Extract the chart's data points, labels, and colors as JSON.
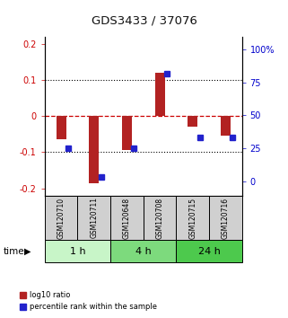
{
  "title": "GDS3433 / 37076",
  "samples": [
    "GSM120710",
    "GSM120711",
    "GSM120648",
    "GSM120708",
    "GSM120715",
    "GSM120716"
  ],
  "log10_ratio": [
    -0.065,
    -0.185,
    -0.095,
    0.12,
    -0.03,
    -0.055
  ],
  "percentile_rank": [
    25,
    3,
    25,
    82,
    33,
    33
  ],
  "time_groups": [
    {
      "label": "1 h",
      "spans": [
        0,
        2
      ],
      "color": "#c8f5c8"
    },
    {
      "label": "4 h",
      "spans": [
        2,
        4
      ],
      "color": "#7dda7d"
    },
    {
      "label": "24 h",
      "spans": [
        4,
        6
      ],
      "color": "#4dc94d"
    }
  ],
  "ylim_left": [
    -0.22,
    0.22
  ],
  "ylim_right": [
    -11,
    110
  ],
  "bar_color_red": "#b22222",
  "bar_color_blue": "#2222cc",
  "bg_color": "#ffffff",
  "plot_bg": "#ffffff",
  "grid_color": "#000000",
  "zero_line_color": "#cc0000",
  "tick_color_left": "#cc0000",
  "tick_color_right": "#0000cc",
  "right_yticks": [
    0,
    25,
    50,
    75,
    100
  ],
  "right_yticklabels": [
    "0",
    "25",
    "50",
    "75",
    "100%"
  ],
  "left_yticks": [
    -0.2,
    -0.1,
    0.0,
    0.1,
    0.2
  ],
  "left_yticklabels": [
    "-0.2",
    "-0.1",
    "0",
    "0.1",
    "0.2"
  ],
  "sample_box_color": "#d0d0d0",
  "legend_red_label": "log10 ratio",
  "legend_blue_label": "percentile rank within the sample"
}
